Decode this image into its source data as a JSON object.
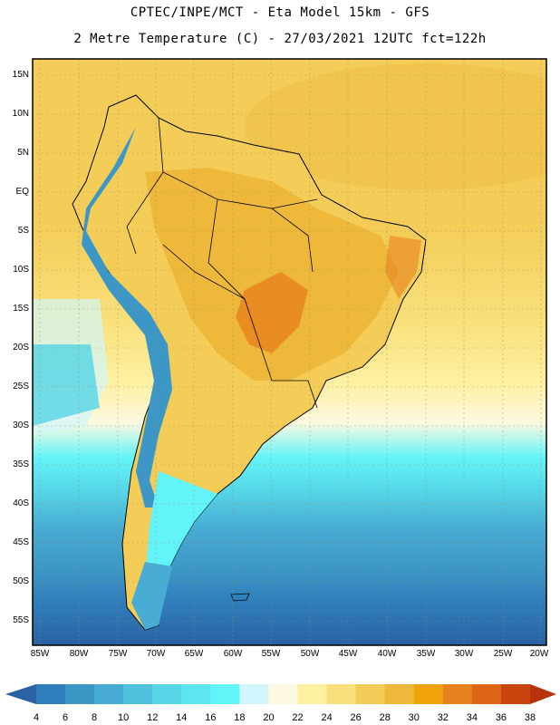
{
  "header": {
    "line1": "CPTEC/INPE/MCT -  Eta Model 15km - GFS",
    "line2": "2 Metre Temperature (C) - 27/03/2021 12UTC fct=122h"
  },
  "lat_labels": [
    "15N",
    "10N",
    "5N",
    "EQ",
    "5S",
    "10S",
    "15S",
    "20S",
    "25S",
    "30S",
    "35S",
    "40S",
    "45S",
    "50S",
    "55S"
  ],
  "lon_labels": [
    "85W",
    "80W",
    "75W",
    "70W",
    "65W",
    "60W",
    "55W",
    "50W",
    "45W",
    "40W",
    "35W",
    "30W",
    "25W",
    "20W"
  ],
  "colorbar": {
    "values": [
      "4",
      "6",
      "8",
      "10",
      "12",
      "14",
      "16",
      "18",
      "20",
      "22",
      "24",
      "26",
      "28",
      "30",
      "32",
      "34",
      "36",
      "38"
    ],
    "colors": [
      "#2a62a4",
      "#2f7dba",
      "#3d97c6",
      "#48acd4",
      "#4fc0dd",
      "#55d5e6",
      "#5de6ef",
      "#63f4f9",
      "#d2f6fb",
      "#fdf9e0",
      "#fdf0a0",
      "#f9e07c",
      "#f3cd58",
      "#eeb83a",
      "#f0a20a",
      "#e7821e",
      "#dc6414",
      "#c9450f",
      "#b8320c"
    ]
  }
}
